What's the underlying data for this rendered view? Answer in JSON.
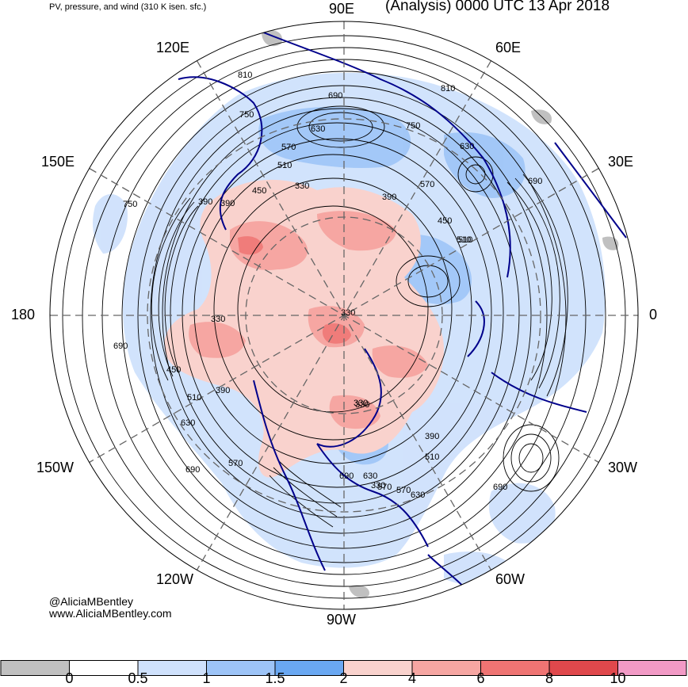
{
  "header": {
    "left_title": "PV, pressure, and wind (310 K isen. sfc.)",
    "right_title": "(Analysis) 0000 UTC 13 Apr 2018"
  },
  "longitude_labels": {
    "e90": "90E",
    "e60": "60E",
    "e30": "30E",
    "zero": "0",
    "w30": "30W",
    "w60": "60W",
    "w90": "90W",
    "w120": "120W",
    "w150": "150W",
    "d180": "180",
    "e150": "150E",
    "e120": "120E"
  },
  "contour_labels": [
    "810",
    "690",
    "750",
    "630",
    "570",
    "510",
    "450",
    "390",
    "330",
    "330",
    "330",
    "630",
    "750",
    "810",
    "690",
    "570",
    "450",
    "510",
    "390",
    "330",
    "390",
    "510",
    "570",
    "630",
    "690",
    "750",
    "690",
    "450",
    "510",
    "390",
    "630",
    "570",
    "690",
    "330",
    "330",
    "390",
    "510",
    "570",
    "630",
    "690"
  ],
  "credit": {
    "handle": "@AliciaMBentley",
    "website": "www.AliciaMBentley.com"
  },
  "colorbar": {
    "tick_labels": [
      "0",
      "0.5",
      "1",
      "1.5",
      "2",
      "4",
      "6",
      "8",
      "10"
    ],
    "colors": [
      "#c0c0c0",
      "#ffffff",
      "#cfe1fc",
      "#9dc4f7",
      "#6aa8f2",
      "#f9d2cd",
      "#f6a6a2",
      "#ef7473",
      "#e0484c",
      "#f29ac6"
    ]
  },
  "map_colors": {
    "pv_low": "#cfe1fc",
    "pv_mid": "#9dc4f7",
    "pv_high1": "#f9d2cd",
    "pv_high2": "#f6a6a2",
    "coast": "#00008b",
    "contour": "#000000",
    "grid": "#666666"
  }
}
